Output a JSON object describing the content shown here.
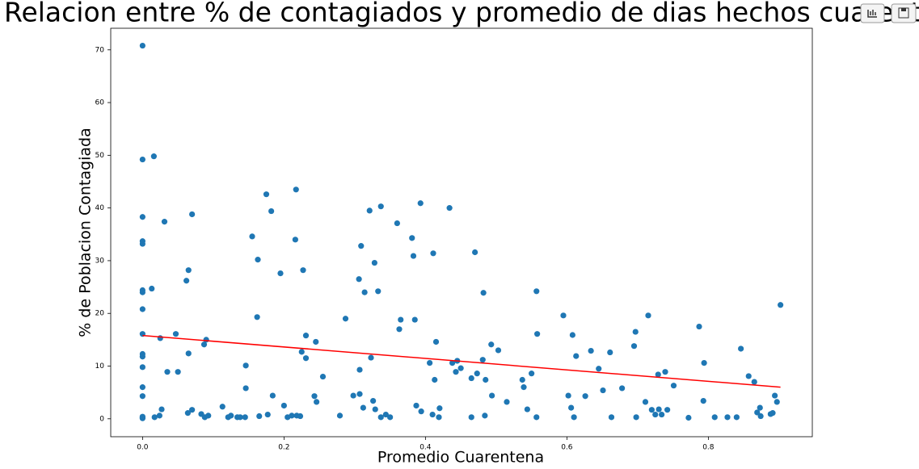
{
  "chart_data": {
    "type": "scatter",
    "title": "Relacion entre % de contagiados y promedio de dias hechos cuarentena",
    "x_label": "Promedio Cuarentena",
    "y_label": "% de Poblacion Contagiada",
    "xlim": [
      -0.045,
      0.947
    ],
    "ylim": [
      -3.4,
      74.1
    ],
    "xticks": [
      {
        "value": 0,
        "label": "0.0"
      },
      0.2,
      0.4,
      0.6,
      0.8
    ],
    "yticks": [
      0,
      10,
      20,
      30,
      40,
      50,
      60,
      70
    ],
    "grid": false,
    "points": {
      "color": "#1f77b4",
      "x": [
        0,
        0,
        0.016,
        0,
        0,
        0,
        0,
        0,
        0.013,
        0,
        0,
        0,
        0,
        0,
        0,
        0,
        0,
        0,
        0,
        0.031,
        0.025,
        0.035,
        0.047,
        0.05,
        0.027,
        0.024,
        0.017,
        0.07,
        0.065,
        0.062,
        0.065,
        0.07,
        0.064,
        0.087,
        0.09,
        0.083,
        0.088,
        0.093,
        0.113,
        0.121,
        0.125,
        0.134,
        0.138,
        0.145,
        0.146,
        0.146,
        0.155,
        0.163,
        0.162,
        0.165,
        0.175,
        0.182,
        0.177,
        0.184,
        0.195,
        0.2,
        0.205,
        0.211,
        0.216,
        0.217,
        0.218,
        0.223,
        0.225,
        0.227,
        0.231,
        0.231,
        0.243,
        0.245,
        0.246,
        0.255,
        0.279,
        0.287,
        0.298,
        0.306,
        0.309,
        0.307,
        0.307,
        0.312,
        0.314,
        0.321,
        0.323,
        0.328,
        0.326,
        0.329,
        0.333,
        0.337,
        0.337,
        0.344,
        0.35,
        0.36,
        0.363,
        0.365,
        0.381,
        0.383,
        0.385,
        0.387,
        0.394,
        0.393,
        0.406,
        0.41,
        0.413,
        0.411,
        0.415,
        0.419,
        0.42,
        0.434,
        0.438,
        0.443,
        0.445,
        0.45,
        0.465,
        0.465,
        0.47,
        0.473,
        0.481,
        0.482,
        0.484,
        0.485,
        0.493,
        0.494,
        0.503,
        0.515,
        0.537,
        0.539,
        0.544,
        0.55,
        0.557,
        0.558,
        0.557,
        0.595,
        0.602,
        0.606,
        0.608,
        0.61,
        0.613,
        0.626,
        0.634,
        0.645,
        0.651,
        0.661,
        0.663,
        0.678,
        0.695,
        0.697,
        0.698,
        0.711,
        0.715,
        0.72,
        0.725,
        0.729,
        0.73,
        0.734,
        0.739,
        0.742,
        0.751,
        0.772,
        0.787,
        0.793,
        0.794,
        0.809,
        0.827,
        0.84,
        0.846,
        0.857,
        0.865,
        0.869,
        0.873,
        0.874,
        0.888,
        0.891,
        0.894,
        0.897,
        0.902
      ],
      "y": [
        70.8,
        49.2,
        49.8,
        38.3,
        33.7,
        33.2,
        24.4,
        24,
        24.7,
        20.8,
        16.1,
        12.3,
        11.8,
        9.8,
        6,
        4.3,
        0.4,
        0.1,
        0.2,
        37.4,
        15.3,
        8.9,
        16.1,
        8.9,
        1.8,
        0.6,
        0.3,
        38.8,
        28.2,
        26.2,
        12.4,
        1.7,
        1.1,
        14.1,
        15,
        0.9,
        0.3,
        0.6,
        2.3,
        0.3,
        0.6,
        0.3,
        0.3,
        0.3,
        10.1,
        5.8,
        34.6,
        30.2,
        19.3,
        0.5,
        42.6,
        39.4,
        0.8,
        4.4,
        27.6,
        2.5,
        0.3,
        0.6,
        34,
        43.5,
        0.6,
        0.5,
        12.7,
        28.2,
        11.5,
        15.8,
        4.3,
        14.6,
        3.2,
        8,
        0.6,
        19,
        4.4,
        26.5,
        32.8,
        9.3,
        4.7,
        2.1,
        24,
        39.5,
        11.6,
        29.6,
        3.4,
        1.8,
        24.2,
        40.3,
        0.3,
        0.8,
        0.3,
        37.1,
        17,
        18.8,
        34.3,
        30.9,
        18.8,
        2.5,
        1.4,
        40.9,
        10.6,
        0.8,
        7.4,
        31.4,
        14.6,
        0.3,
        2,
        40,
        10.6,
        8.9,
        11,
        9.6,
        7.7,
        0.3,
        31.6,
        8.6,
        11.2,
        23.9,
        0.6,
        7.4,
        14.1,
        4.4,
        13,
        3.2,
        7.4,
        6,
        1.8,
        8.6,
        24.2,
        16.1,
        0.3,
        19.6,
        4.4,
        2.1,
        15.9,
        0.3,
        11.9,
        4.3,
        12.9,
        9.5,
        5.4,
        12.6,
        0.3,
        5.8,
        13.8,
        16.5,
        0.3,
        3.2,
        19.6,
        1.7,
        0.8,
        8.4,
        1.8,
        0.8,
        8.9,
        1.7,
        6.3,
        0.2,
        17.5,
        3.4,
        10.6,
        0.3,
        0.3,
        0.3,
        13.3,
        8.1,
        7,
        1.2,
        2.1,
        0.5,
        0.9,
        1.1,
        4.4,
        3.2,
        21.6
      ]
    },
    "trend_line": {
      "color": "#ff0000",
      "x": [
        0,
        0.902
      ],
      "y": [
        15.8,
        6
      ]
    }
  }
}
